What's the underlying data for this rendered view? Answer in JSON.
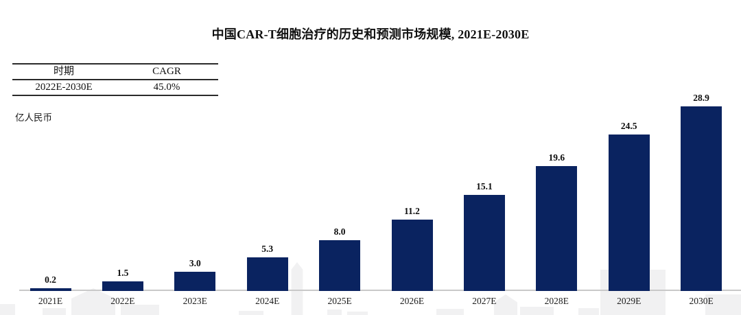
{
  "title": "中国CAR-T细胞治疗的历史和预测市场规模, 2021E-2030E",
  "cagr_table": {
    "headers": [
      "时期",
      "CAGR"
    ],
    "rows": [
      [
        "2022E-2030E",
        "45.0%"
      ]
    ]
  },
  "unit_label": "亿人民币",
  "chart_data": {
    "type": "bar",
    "title": "中国CAR-T细胞治疗的历史和预测市场规模, 2021E-2030E",
    "categories": [
      "2021E",
      "2022E",
      "2023E",
      "2024E",
      "2025E",
      "2026E",
      "2027E",
      "2028E",
      "2029E",
      "2030E"
    ],
    "values": [
      0.2,
      1.5,
      3.0,
      5.3,
      8.0,
      11.2,
      15.1,
      19.6,
      24.5,
      28.9
    ],
    "value_labels": [
      "0.2",
      "1.5",
      "3.0",
      "5.3",
      "8.0",
      "11.2",
      "15.1",
      "19.6",
      "24.5",
      "28.9"
    ],
    "xlabel": "",
    "ylabel": "亿人民币",
    "ylim": [
      0,
      30
    ],
    "grid": false,
    "legend": "none",
    "bar_color": "#0a2360"
  },
  "colors": {
    "bar": "#0a2360",
    "axis_line": "#c9c9c9",
    "table_rule": "#2a2a2a",
    "text": "#111111",
    "watermark": "#f1f1f2"
  }
}
